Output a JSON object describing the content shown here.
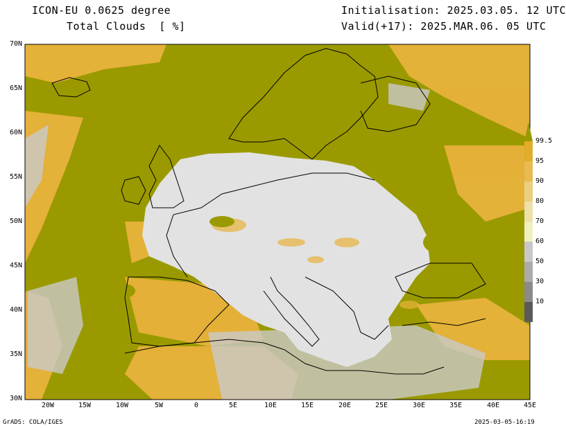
{
  "header": {
    "title_line1": "ICON-EU 0.0625 degree",
    "title_line2": "Total Clouds  [ %]",
    "init_line": "Initialisation: 2025.03.05. 12 UTC",
    "valid_line": "Valid(+17): 2025.MAR.06. 05 UTC"
  },
  "map": {
    "lat_labels": [
      "70N",
      "65N",
      "60N",
      "55N",
      "50N",
      "45N",
      "40N",
      "35N",
      "30N"
    ],
    "lon_labels": [
      "20W",
      "15W",
      "10W",
      "5W",
      "0",
      "5E",
      "10E",
      "15E",
      "20E",
      "25E",
      "30E",
      "35E",
      "40E",
      "45E"
    ],
    "colors": {
      "full_overcast": "#9a9a00",
      "orange": "#e8b23c",
      "ocean_clear": "#e2e2e2",
      "land_clear": "#d4d4d4"
    }
  },
  "colorbar": {
    "levels": [
      "10",
      "30",
      "50",
      "60",
      "70",
      "80",
      "90",
      "95",
      "99.5"
    ],
    "colors": [
      "#5a5a5a",
      "#8a8a8a",
      "#ababab",
      "#c8c8c8",
      "#f1eec0",
      "#ede0a8",
      "#e9cf7e",
      "#e7bb4f",
      "#e1ad2a",
      "#9a9a00"
    ]
  },
  "footer": {
    "left": "GrADS: COLA/IGES",
    "right": "2025-03-05-16:19"
  }
}
